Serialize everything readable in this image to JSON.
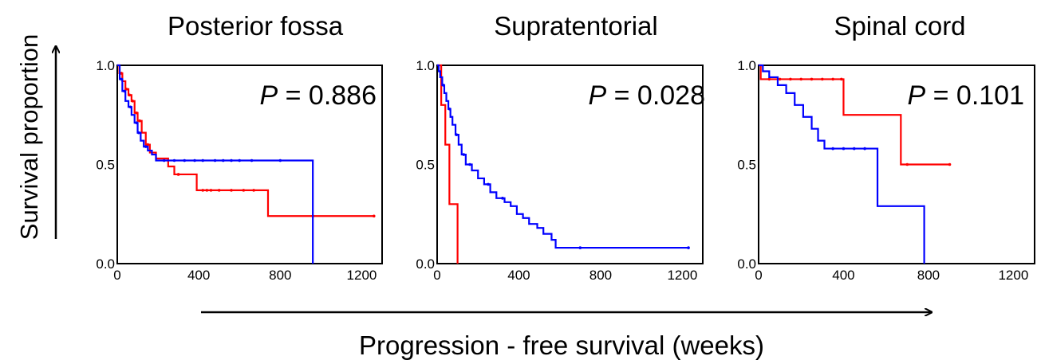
{
  "figure": {
    "ylabel": "Survival proportion",
    "xlabel": "Progression - free survival (weeks)",
    "p_prefix": "P",
    "p_equals": " = "
  },
  "colors": {
    "series_a": "#ff0000",
    "series_b": "#0000ff",
    "axis": "#000000"
  },
  "chart_data": [
    {
      "type": "line",
      "step": true,
      "title": "Posterior fossa",
      "p_value": "0.886",
      "xlim": [
        0,
        1300
      ],
      "ylim": [
        0,
        1
      ],
      "x_ticks": [
        "0",
        "400",
        "800",
        "1200"
      ],
      "y_ticks": [
        "0.0",
        "0.5",
        "1.0"
      ],
      "series": [
        {
          "color": "red",
          "x": [
            0,
            10,
            25,
            40,
            55,
            70,
            85,
            100,
            120,
            140,
            160,
            190,
            250,
            280,
            390,
            740,
            1260
          ],
          "y": [
            1.0,
            0.96,
            0.92,
            0.88,
            0.85,
            0.82,
            0.76,
            0.72,
            0.66,
            0.6,
            0.56,
            0.53,
            0.49,
            0.45,
            0.37,
            0.24,
            0.24
          ],
          "censored_x": [
            20,
            45,
            60,
            75,
            95,
            110,
            150,
            300,
            420,
            440,
            460,
            500,
            560,
            620,
            670,
            960,
            1260
          ]
        },
        {
          "color": "blue",
          "x": [
            0,
            12,
            25,
            40,
            55,
            70,
            85,
            100,
            115,
            130,
            150,
            170,
            190,
            960
          ],
          "y": [
            1.0,
            0.93,
            0.87,
            0.82,
            0.79,
            0.75,
            0.71,
            0.66,
            0.62,
            0.59,
            0.57,
            0.55,
            0.52,
            0.0
          ],
          "censored_x": [
            20,
            35,
            65,
            95,
            105,
            140,
            230,
            280,
            330,
            380,
            420,
            480,
            520,
            560,
            600,
            660,
            800
          ]
        }
      ]
    },
    {
      "type": "line",
      "step": true,
      "title": "Supratentorial",
      "p_value": "0.028",
      "xlim": [
        0,
        1300
      ],
      "ylim": [
        0,
        1
      ],
      "x_ticks": [
        "0",
        "400",
        "800",
        "1200"
      ],
      "y_ticks": [
        "0.0",
        "0.5",
        "1.0"
      ],
      "series": [
        {
          "color": "red",
          "x": [
            0,
            20,
            40,
            60,
            100
          ],
          "y": [
            1.0,
            0.8,
            0.6,
            0.3,
            0.0
          ],
          "censored_x": []
        },
        {
          "color": "blue",
          "x": [
            0,
            8,
            15,
            25,
            35,
            45,
            55,
            65,
            75,
            90,
            105,
            120,
            140,
            170,
            200,
            230,
            260,
            290,
            330,
            360,
            390,
            420,
            450,
            490,
            520,
            560,
            580,
            1230
          ],
          "y": [
            1.0,
            0.97,
            0.94,
            0.9,
            0.86,
            0.82,
            0.78,
            0.74,
            0.7,
            0.65,
            0.6,
            0.55,
            0.5,
            0.47,
            0.43,
            0.4,
            0.36,
            0.33,
            0.31,
            0.29,
            0.25,
            0.23,
            0.2,
            0.18,
            0.15,
            0.12,
            0.08,
            0.08
          ],
          "censored_x": [
            30,
            60,
            95,
            130,
            160,
            250,
            320,
            700,
            1230
          ]
        }
      ]
    },
    {
      "type": "line",
      "step": true,
      "title": "Spinal cord",
      "p_value": "0.101",
      "xlim": [
        0,
        1300
      ],
      "ylim": [
        0,
        1
      ],
      "x_ticks": [
        "0",
        "400",
        "800",
        "1200"
      ],
      "y_ticks": [
        "0.0",
        "0.5",
        "1.0"
      ],
      "series": [
        {
          "color": "red",
          "x": [
            0,
            10,
            400,
            670,
            900
          ],
          "y": [
            1.0,
            0.93,
            0.75,
            0.5,
            0.5
          ],
          "censored_x": [
            50,
            100,
            150,
            200,
            250,
            300,
            350,
            390,
            700,
            900
          ]
        },
        {
          "color": "blue",
          "x": [
            0,
            20,
            50,
            90,
            130,
            170,
            210,
            250,
            280,
            310,
            560,
            780
          ],
          "y": [
            1.0,
            0.97,
            0.94,
            0.9,
            0.86,
            0.8,
            0.74,
            0.68,
            0.62,
            0.58,
            0.29,
            0.0
          ],
          "censored_x": [
            350,
            400,
            450,
            500
          ]
        }
      ]
    }
  ]
}
